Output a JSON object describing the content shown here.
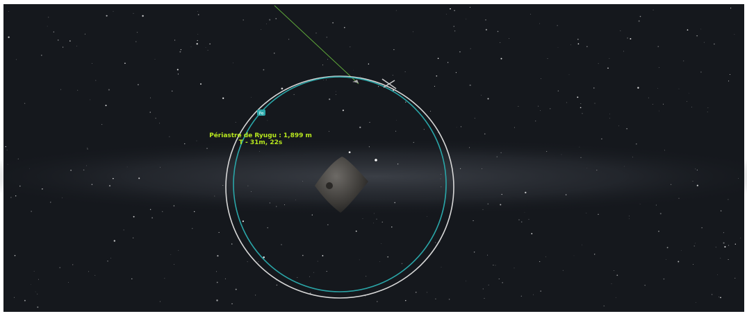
{
  "map_view": {
    "periapsis": {
      "marker": "Pe",
      "label": "Périastre de Ryugu : 1,899 m",
      "time": "T - 31m, 22s"
    }
  }
}
